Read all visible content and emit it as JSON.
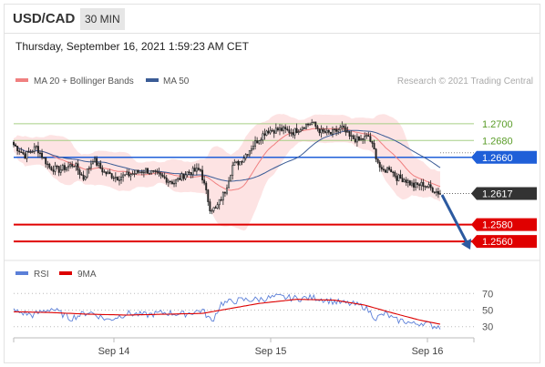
{
  "header": {
    "symbol": "USD/CAD",
    "timeframe": "30 MIN",
    "date": "Thursday, September 16, 2021 1:59:23 AM CET"
  },
  "legend": {
    "ma20_bb": "MA 20 + Bollinger Bands",
    "ma50": "MA 50",
    "copyright": "Research © 2021 Trading Central",
    "rsi": "RSI",
    "rsi9": "9MA"
  },
  "colors": {
    "ma20": "#f08080",
    "band_fill": "#fde0e0",
    "ma50": "#3b5c96",
    "green_level": "#a6cf85",
    "green_text": "#5a9c28",
    "blue_level": "#1f5fd8",
    "red_level": "#e00000",
    "current": "#333333",
    "arrow": "#2c5aa0",
    "rsi": "#5b7fd8",
    "rsi9": "#dd0000",
    "candle": "#222222"
  },
  "chart_data": {
    "type": "candlestick",
    "symbol": "USD/CAD",
    "timeframe": "30 MIN",
    "y_axis": {
      "min": 1.2546,
      "max": 1.2728
    },
    "x_ticks": [
      "Sep 14",
      "Sep 15",
      "Sep 16"
    ],
    "levels": [
      {
        "label": "1.2700",
        "value": 1.27,
        "style": "green"
      },
      {
        "label": "1.2680",
        "value": 1.268,
        "style": "green"
      },
      {
        "label": "1.2660",
        "value": 1.266,
        "style": "blue"
      },
      {
        "label": "1.2617",
        "value": 1.2617,
        "style": "current"
      },
      {
        "label": "1.2580",
        "value": 1.258,
        "style": "red"
      },
      {
        "label": "1.2560",
        "value": 1.256,
        "style": "red"
      }
    ],
    "path": [
      [
        0,
        1.2675
      ],
      [
        6,
        1.2662
      ],
      [
        12,
        1.2672
      ],
      [
        19,
        1.2648
      ],
      [
        24,
        1.2645
      ],
      [
        32,
        1.2652
      ],
      [
        37,
        1.2635
      ],
      [
        42,
        1.2658
      ],
      [
        48,
        1.2642
      ],
      [
        55,
        1.2636
      ],
      [
        62,
        1.264
      ],
      [
        70,
        1.2645
      ],
      [
        77,
        1.2638
      ],
      [
        85,
        1.263
      ],
      [
        92,
        1.2642
      ],
      [
        99,
        1.2645
      ],
      [
        104,
        1.26
      ],
      [
        107,
        1.2598
      ],
      [
        112,
        1.262
      ],
      [
        116,
        1.265
      ],
      [
        120,
        1.2655
      ],
      [
        127,
        1.2675
      ],
      [
        134,
        1.2692
      ],
      [
        142,
        1.2693
      ],
      [
        148,
        1.269
      ],
      [
        154,
        1.2698
      ],
      [
        158,
        1.2701
      ],
      [
        163,
        1.269
      ],
      [
        168,
        1.2688
      ],
      [
        174,
        1.2695
      ],
      [
        178,
        1.2684
      ],
      [
        183,
        1.268
      ],
      [
        188,
        1.2685
      ],
      [
        191,
        1.2668
      ],
      [
        195,
        1.2642
      ],
      [
        199,
        1.2648
      ],
      [
        203,
        1.2636
      ],
      [
        207,
        1.2634
      ],
      [
        212,
        1.2626
      ],
      [
        217,
        1.2628
      ],
      [
        222,
        1.2622
      ],
      [
        226,
        1.2617
      ]
    ],
    "rsi": {
      "levels": [
        70,
        50,
        30
      ],
      "range": [
        22,
        78
      ],
      "rsi_path": [
        [
          0,
          49
        ],
        [
          10,
          44
        ],
        [
          20,
          52
        ],
        [
          30,
          40
        ],
        [
          40,
          48
        ],
        [
          50,
          38
        ],
        [
          60,
          46
        ],
        [
          70,
          44
        ],
        [
          80,
          47
        ],
        [
          90,
          45
        ],
        [
          100,
          50
        ],
        [
          105,
          36
        ],
        [
          110,
          58
        ],
        [
          120,
          62
        ],
        [
          130,
          63
        ],
        [
          140,
          66
        ],
        [
          150,
          64
        ],
        [
          160,
          65
        ],
        [
          170,
          60
        ],
        [
          180,
          57
        ],
        [
          186,
          54
        ],
        [
          192,
          40
        ],
        [
          197,
          46
        ],
        [
          202,
          38
        ],
        [
          207,
          37
        ],
        [
          212,
          33
        ],
        [
          217,
          35
        ],
        [
          222,
          31
        ],
        [
          226,
          30
        ]
      ],
      "rsi9_path": [
        [
          0,
          48
        ],
        [
          20,
          47
        ],
        [
          40,
          45
        ],
        [
          60,
          44
        ],
        [
          80,
          45
        ],
        [
          100,
          46
        ],
        [
          110,
          50
        ],
        [
          130,
          58
        ],
        [
          150,
          63
        ],
        [
          170,
          62
        ],
        [
          186,
          56
        ],
        [
          200,
          47
        ],
        [
          215,
          38
        ],
        [
          226,
          33
        ]
      ]
    }
  }
}
